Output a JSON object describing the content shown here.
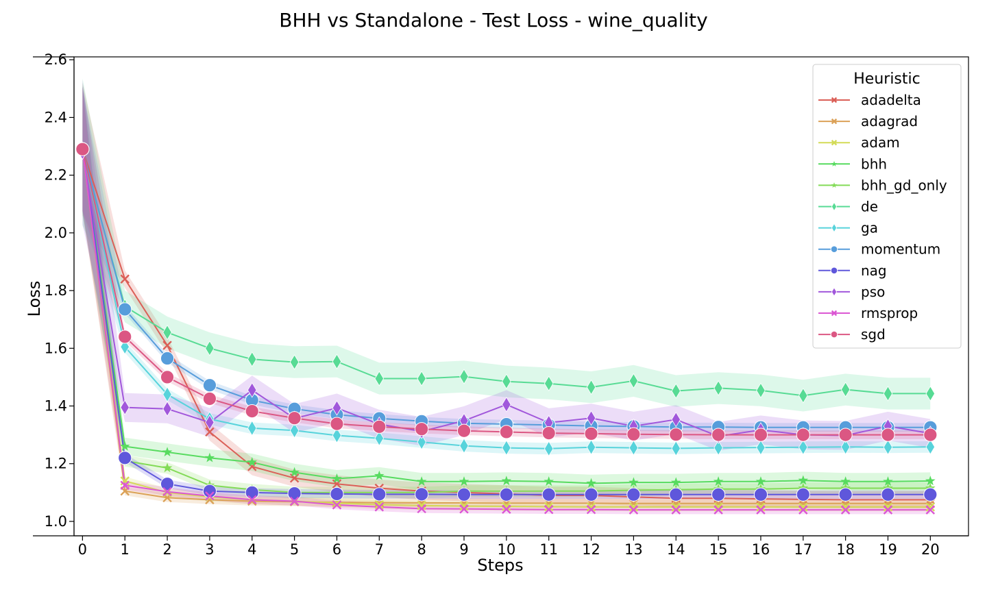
{
  "chart_data": {
    "type": "line",
    "title": "BHH vs Standalone - Test Loss - wine_quality",
    "xlabel": "Steps",
    "ylabel": "Loss",
    "x": [
      0,
      1,
      2,
      3,
      4,
      5,
      6,
      7,
      8,
      9,
      10,
      11,
      12,
      13,
      14,
      15,
      16,
      17,
      18,
      19,
      20
    ],
    "xlim": [
      -0.2,
      20.9
    ],
    "ylim": [
      0.95,
      2.61
    ],
    "yticks": [
      "1.0",
      "1.2",
      "1.4",
      "1.6",
      "1.8",
      "2.0",
      "2.2",
      "2.4",
      "2.6"
    ],
    "grid": false,
    "legend_title": "Heuristic",
    "legend_position": "top-right",
    "series": [
      {
        "name": "adadelta",
        "color": "#db5f57",
        "marker": "x",
        "band": 0.03,
        "values": [
          2.29,
          1.84,
          1.61,
          1.31,
          1.19,
          1.15,
          1.13,
          1.115,
          1.105,
          1.1,
          1.095,
          1.09,
          1.09,
          1.085,
          1.08,
          1.08,
          1.078,
          1.076,
          1.075,
          1.075,
          1.075
        ]
      },
      {
        "name": "adagrad",
        "color": "#dba157",
        "marker": "x",
        "band": 0.015,
        "values": [
          2.29,
          1.105,
          1.082,
          1.075,
          1.07,
          1.068,
          1.066,
          1.065,
          1.064,
          1.064,
          1.063,
          1.063,
          1.063,
          1.062,
          1.062,
          1.062,
          1.062,
          1.062,
          1.062,
          1.062,
          1.062
        ]
      },
      {
        "name": "adam",
        "color": "#d3db57",
        "marker": "x",
        "band": 0.015,
        "values": [
          2.29,
          1.14,
          1.1,
          1.085,
          1.075,
          1.07,
          1.063,
          1.058,
          1.055,
          1.053,
          1.052,
          1.051,
          1.05,
          1.05,
          1.05,
          1.05,
          1.05,
          1.05,
          1.05,
          1.05,
          1.05
        ]
      },
      {
        "name": "bhh",
        "color": "#57db5f",
        "marker": "star",
        "band": 0.03,
        "values": [
          2.29,
          1.26,
          1.24,
          1.22,
          1.205,
          1.17,
          1.148,
          1.158,
          1.138,
          1.138,
          1.14,
          1.138,
          1.132,
          1.135,
          1.135,
          1.138,
          1.138,
          1.142,
          1.138,
          1.138,
          1.14
        ]
      },
      {
        "name": "bhh_gd_only",
        "color": "#83db57",
        "marker": "star",
        "band": 0.02,
        "values": [
          2.29,
          1.21,
          1.185,
          1.125,
          1.11,
          1.1,
          1.1,
          1.1,
          1.1,
          1.105,
          1.105,
          1.105,
          1.105,
          1.108,
          1.11,
          1.112,
          1.112,
          1.115,
          1.115,
          1.115,
          1.115
        ]
      },
      {
        "name": "de",
        "color": "#57db94",
        "marker": "diamond",
        "band": 0.055,
        "values": [
          2.28,
          1.745,
          1.655,
          1.6,
          1.562,
          1.552,
          1.554,
          1.495,
          1.495,
          1.502,
          1.485,
          1.478,
          1.465,
          1.487,
          1.452,
          1.462,
          1.454,
          1.436,
          1.457,
          1.443,
          1.443
        ]
      },
      {
        "name": "ga",
        "color": "#57d3db",
        "marker": "diamond",
        "band": 0.02,
        "values": [
          2.29,
          1.605,
          1.44,
          1.355,
          1.323,
          1.315,
          1.298,
          1.288,
          1.275,
          1.262,
          1.255,
          1.252,
          1.257,
          1.255,
          1.253,
          1.255,
          1.256,
          1.257,
          1.258,
          1.257,
          1.258
        ]
      },
      {
        "name": "momentum",
        "color": "#579ddb",
        "marker": "circle",
        "band": 0.015,
        "values": [
          2.29,
          1.735,
          1.565,
          1.472,
          1.42,
          1.39,
          1.37,
          1.357,
          1.347,
          1.34,
          1.337,
          1.334,
          1.331,
          1.329,
          1.327,
          1.327,
          1.326,
          1.326,
          1.326,
          1.326,
          1.326
        ]
      },
      {
        "name": "nag",
        "color": "#5f57db",
        "marker": "circle",
        "band": 0.015,
        "values": [
          2.29,
          1.22,
          1.13,
          1.105,
          1.1,
          1.097,
          1.095,
          1.094,
          1.094,
          1.093,
          1.093,
          1.093,
          1.093,
          1.093,
          1.093,
          1.093,
          1.093,
          1.093,
          1.093,
          1.093,
          1.093
        ]
      },
      {
        "name": "pso",
        "color": "#a157db",
        "marker": "diamond",
        "band": 0.05,
        "values": [
          2.28,
          1.395,
          1.39,
          1.343,
          1.455,
          1.357,
          1.393,
          1.337,
          1.312,
          1.349,
          1.405,
          1.342,
          1.358,
          1.33,
          1.353,
          1.295,
          1.317,
          1.3,
          1.298,
          1.33,
          1.305
        ]
      },
      {
        "name": "rmsprop",
        "color": "#db57d3",
        "marker": "x",
        "band": 0.015,
        "values": [
          2.29,
          1.125,
          1.103,
          1.088,
          1.075,
          1.07,
          1.057,
          1.05,
          1.044,
          1.043,
          1.042,
          1.041,
          1.041,
          1.04,
          1.04,
          1.04,
          1.04,
          1.04,
          1.04,
          1.04,
          1.04
        ]
      },
      {
        "name": "sgd",
        "color": "#db5783",
        "marker": "circle",
        "band": 0.015,
        "values": [
          2.29,
          1.64,
          1.5,
          1.425,
          1.382,
          1.358,
          1.338,
          1.328,
          1.32,
          1.314,
          1.31,
          1.306,
          1.304,
          1.302,
          1.301,
          1.3,
          1.3,
          1.3,
          1.3,
          1.3,
          1.3
        ]
      }
    ]
  }
}
